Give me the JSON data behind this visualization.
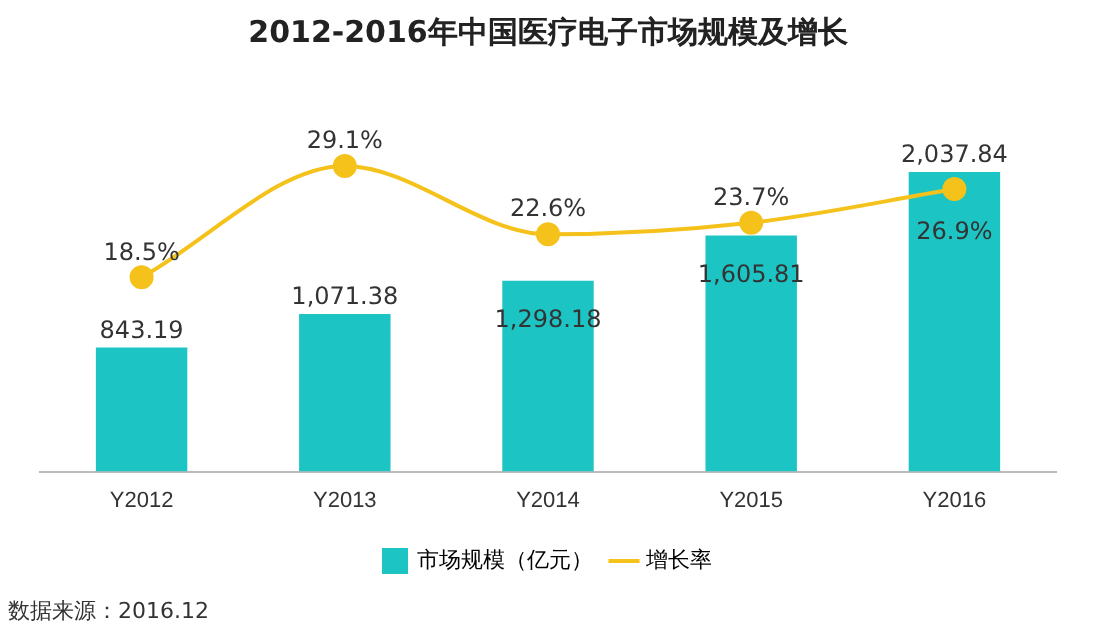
{
  "chart_data": {
    "type": "bar",
    "title": "2012-2016年中国医疗电子市场规模及增长",
    "categories": [
      "Y2012",
      "Y2013",
      "Y2014",
      "Y2015",
      "Y2016"
    ],
    "series": [
      {
        "name": "市场规模（亿元）",
        "color": "#1dc4c4",
        "values": [
          843.19,
          1071.38,
          1298.18,
          1605.81,
          2037.84
        ],
        "value_labels": [
          "843.19",
          "1,071.38",
          "1,298.18",
          "1,605.81",
          "2,037.84"
        ]
      },
      {
        "name": "增长率",
        "type": "line",
        "axis": "y2",
        "color": "#f5c21b",
        "values": [
          18.5,
          29.1,
          22.6,
          23.7,
          26.9
        ],
        "value_labels": [
          "18.5%",
          "29.1%",
          "22.6%",
          "23.7%",
          "26.9%"
        ]
      }
    ],
    "tick_labels": "x",
    "grid": false,
    "legend": "bottom",
    "marker": "circle",
    "annotations": [
      "数据来源：2016.12"
    ]
  }
}
